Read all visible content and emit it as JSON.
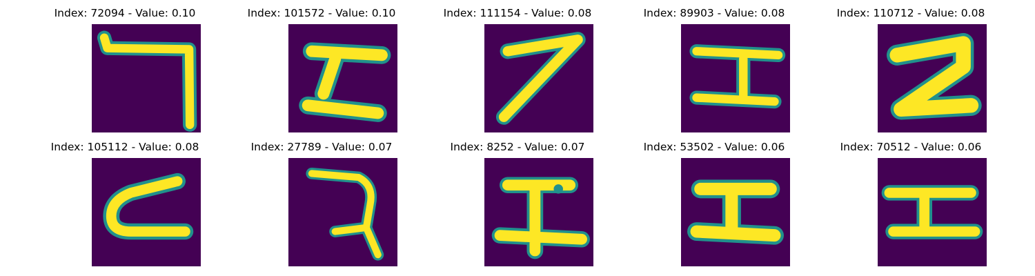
{
  "panels": [
    {
      "title": "Index: 72094 - Value: 0.10"
    },
    {
      "title": "Index: 101572 - Value: 0.10"
    },
    {
      "title": "Index: 111154 - Value: 0.08"
    },
    {
      "title": "Index: 89903 - Value: 0.08"
    },
    {
      "title": "Index: 110712 - Value: 0.08"
    },
    {
      "title": "Index: 105112 - Value: 0.08"
    },
    {
      "title": "Index: 27789 - Value: 0.07"
    },
    {
      "title": "Index: 8252 - Value: 0.07"
    },
    {
      "title": "Index: 53502 - Value: 0.06"
    },
    {
      "title": "Index: 70512 - Value: 0.06"
    }
  ],
  "colors": {
    "background": "#440154",
    "stroke_edge": "#21918c",
    "stroke_core": "#fde725"
  }
}
